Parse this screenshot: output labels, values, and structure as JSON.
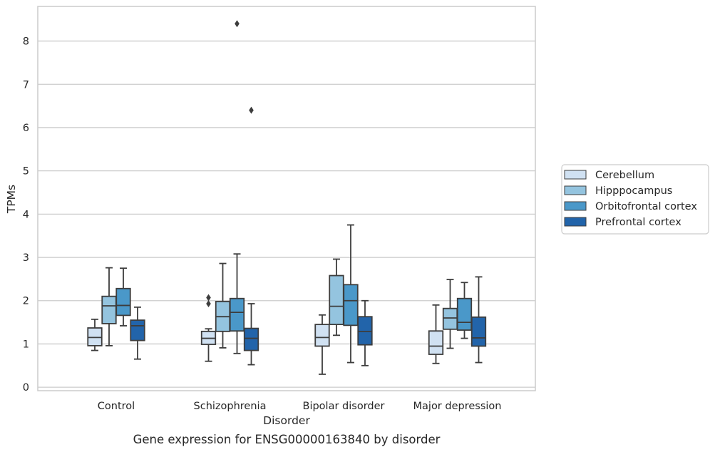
{
  "chart_data": {
    "type": "box",
    "caption": "Gene expression for ENSG00000163840 by disorder",
    "xlabel": "Disorder",
    "ylabel": "TPMs",
    "ylim": [
      -0.08,
      8.8
    ],
    "yticks": [
      0,
      1,
      2,
      3,
      4,
      5,
      6,
      7,
      8
    ],
    "grid": "horizontal",
    "legend_position": "right",
    "categories": [
      "Control",
      "Schizophrenia",
      "Bipolar disorder",
      "Major depression"
    ],
    "series": [
      {
        "name": "Cerebellum",
        "color": "#d0e1f2",
        "boxes": [
          {
            "whislo": 0.85,
            "q1": 0.96,
            "med": 1.15,
            "q3": 1.37,
            "whishi": 1.57,
            "fliers": []
          },
          {
            "whislo": 0.6,
            "q1": 0.99,
            "med": 1.13,
            "q3": 1.29,
            "whishi": 1.35,
            "fliers": [
              1.93,
              2.07
            ]
          },
          {
            "whislo": 0.3,
            "q1": 0.95,
            "med": 1.15,
            "q3": 1.45,
            "whishi": 1.67,
            "fliers": []
          },
          {
            "whislo": 0.55,
            "q1": 0.76,
            "med": 0.95,
            "q3": 1.3,
            "whishi": 1.9,
            "fliers": []
          }
        ]
      },
      {
        "name": "Hipppocampus",
        "color": "#94c4df",
        "boxes": [
          {
            "whislo": 0.96,
            "q1": 1.47,
            "med": 1.88,
            "q3": 2.1,
            "whishi": 2.76,
            "fliers": []
          },
          {
            "whislo": 0.91,
            "q1": 1.29,
            "med": 1.63,
            "q3": 1.98,
            "whishi": 2.86,
            "fliers": []
          },
          {
            "whislo": 1.2,
            "q1": 1.45,
            "med": 1.87,
            "q3": 2.58,
            "whishi": 2.96,
            "fliers": []
          },
          {
            "whislo": 0.9,
            "q1": 1.34,
            "med": 1.6,
            "q3": 1.82,
            "whishi": 2.49,
            "fliers": []
          }
        ]
      },
      {
        "name": "Orbitofrontal cortex",
        "color": "#4a98c9",
        "boxes": [
          {
            "whislo": 1.42,
            "q1": 1.66,
            "med": 1.89,
            "q3": 2.28,
            "whishi": 2.75,
            "fliers": []
          },
          {
            "whislo": 0.78,
            "q1": 1.3,
            "med": 1.73,
            "q3": 2.05,
            "whishi": 3.08,
            "fliers": [
              8.4
            ]
          },
          {
            "whislo": 0.57,
            "q1": 1.43,
            "med": 2.0,
            "q3": 2.37,
            "whishi": 3.75,
            "fliers": []
          },
          {
            "whislo": 1.13,
            "q1": 1.32,
            "med": 1.5,
            "q3": 2.05,
            "whishi": 2.42,
            "fliers": []
          }
        ]
      },
      {
        "name": "Prefrontal cortex",
        "color": "#2264aa",
        "boxes": [
          {
            "whislo": 0.65,
            "q1": 1.08,
            "med": 1.42,
            "q3": 1.55,
            "whishi": 1.85,
            "fliers": []
          },
          {
            "whislo": 0.52,
            "q1": 0.85,
            "med": 1.13,
            "q3": 1.36,
            "whishi": 1.93,
            "fliers": [
              6.4
            ]
          },
          {
            "whislo": 0.5,
            "q1": 0.98,
            "med": 1.29,
            "q3": 1.63,
            "whishi": 2.0,
            "fliers": []
          },
          {
            "whislo": 0.57,
            "q1": 0.95,
            "med": 1.14,
            "q3": 1.62,
            "whishi": 2.55,
            "fliers": []
          }
        ]
      }
    ]
  }
}
